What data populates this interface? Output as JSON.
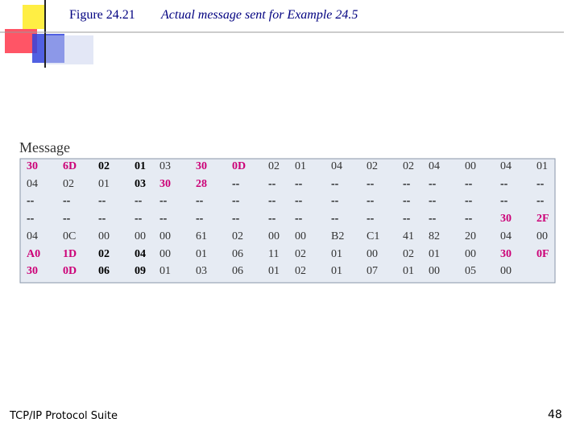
{
  "header": {
    "figure_label": "Figure 24.21",
    "caption": "Actual message sent for Example 24.5"
  },
  "table": {
    "label": "Message",
    "rows": [
      [
        "30",
        "6D",
        "02",
        "01",
        "03",
        "30",
        "0D",
        "02",
        "01",
        "04",
        "02",
        "02",
        "04",
        "00",
        "04",
        "01"
      ],
      [
        "04",
        "02",
        "01",
        "03",
        "30",
        "28",
        "--",
        "--",
        "--",
        "--",
        "--",
        "--",
        "--",
        "--",
        "--",
        "--"
      ],
      [
        "--",
        "--",
        "--",
        "--",
        "--",
        "--",
        "--",
        "--",
        "--",
        "--",
        "--",
        "--",
        "--",
        "--",
        "--",
        "--"
      ],
      [
        "--",
        "--",
        "--",
        "--",
        "--",
        "--",
        "--",
        "--",
        "--",
        "--",
        "--",
        "--",
        "--",
        "--",
        "30",
        "2F"
      ],
      [
        "04",
        "0C",
        "00",
        "00",
        "00",
        "61",
        "02",
        "00",
        "00",
        "B2",
        "C1",
        "41",
        "82",
        "20",
        "04",
        "00"
      ],
      [
        "A0",
        "1D",
        "02",
        "04",
        "00",
        "01",
        "06",
        "11",
        "02",
        "01",
        "00",
        "02",
        "01",
        "00",
        "30",
        "0F"
      ],
      [
        "30",
        "0D",
        "06",
        "09",
        "01",
        "03",
        "06",
        "01",
        "02",
        "01",
        "07",
        "01",
        "00",
        "05",
        "00"
      ]
    ],
    "cell_styles": [
      [
        "pink",
        "pink",
        "bold",
        "bold",
        "plain",
        "pink",
        "pink",
        "plain",
        "plain",
        "plain",
        "plain",
        "plain",
        "plain",
        "plain",
        "plain",
        "plain"
      ],
      [
        "plain",
        "plain",
        "plain",
        "bold",
        "pink",
        "pink",
        "bold",
        "bold",
        "bold",
        "bold",
        "bold",
        "bold",
        "bold",
        "bold",
        "bold",
        "bold"
      ],
      [
        "bold",
        "bold",
        "bold",
        "bold",
        "bold",
        "bold",
        "bold",
        "bold",
        "bold",
        "bold",
        "bold",
        "bold",
        "bold",
        "bold",
        "bold",
        "bold"
      ],
      [
        "bold",
        "bold",
        "bold",
        "bold",
        "bold",
        "bold",
        "bold",
        "bold",
        "bold",
        "bold",
        "bold",
        "bold",
        "bold",
        "bold",
        "pink",
        "pink"
      ],
      [
        "plain",
        "plain",
        "plain",
        "plain",
        "plain",
        "plain",
        "plain",
        "plain",
        "plain",
        "plain",
        "plain",
        "plain",
        "plain",
        "plain",
        "plain",
        "plain"
      ],
      [
        "pink",
        "pink",
        "bold",
        "bold",
        "plain",
        "plain",
        "plain",
        "plain",
        "plain",
        "plain",
        "plain",
        "plain",
        "plain",
        "plain",
        "pink",
        "pink"
      ],
      [
        "pink",
        "pink",
        "bold",
        "bold",
        "plain",
        "plain",
        "plain",
        "plain",
        "plain",
        "plain",
        "plain",
        "plain",
        "plain",
        "plain",
        "plain"
      ]
    ],
    "style_colors": {
      "pink": "#cc0077",
      "bold": "#000000",
      "plain": "#333333"
    }
  },
  "footer": {
    "left": "TCP/IP Protocol Suite",
    "page": "48"
  }
}
